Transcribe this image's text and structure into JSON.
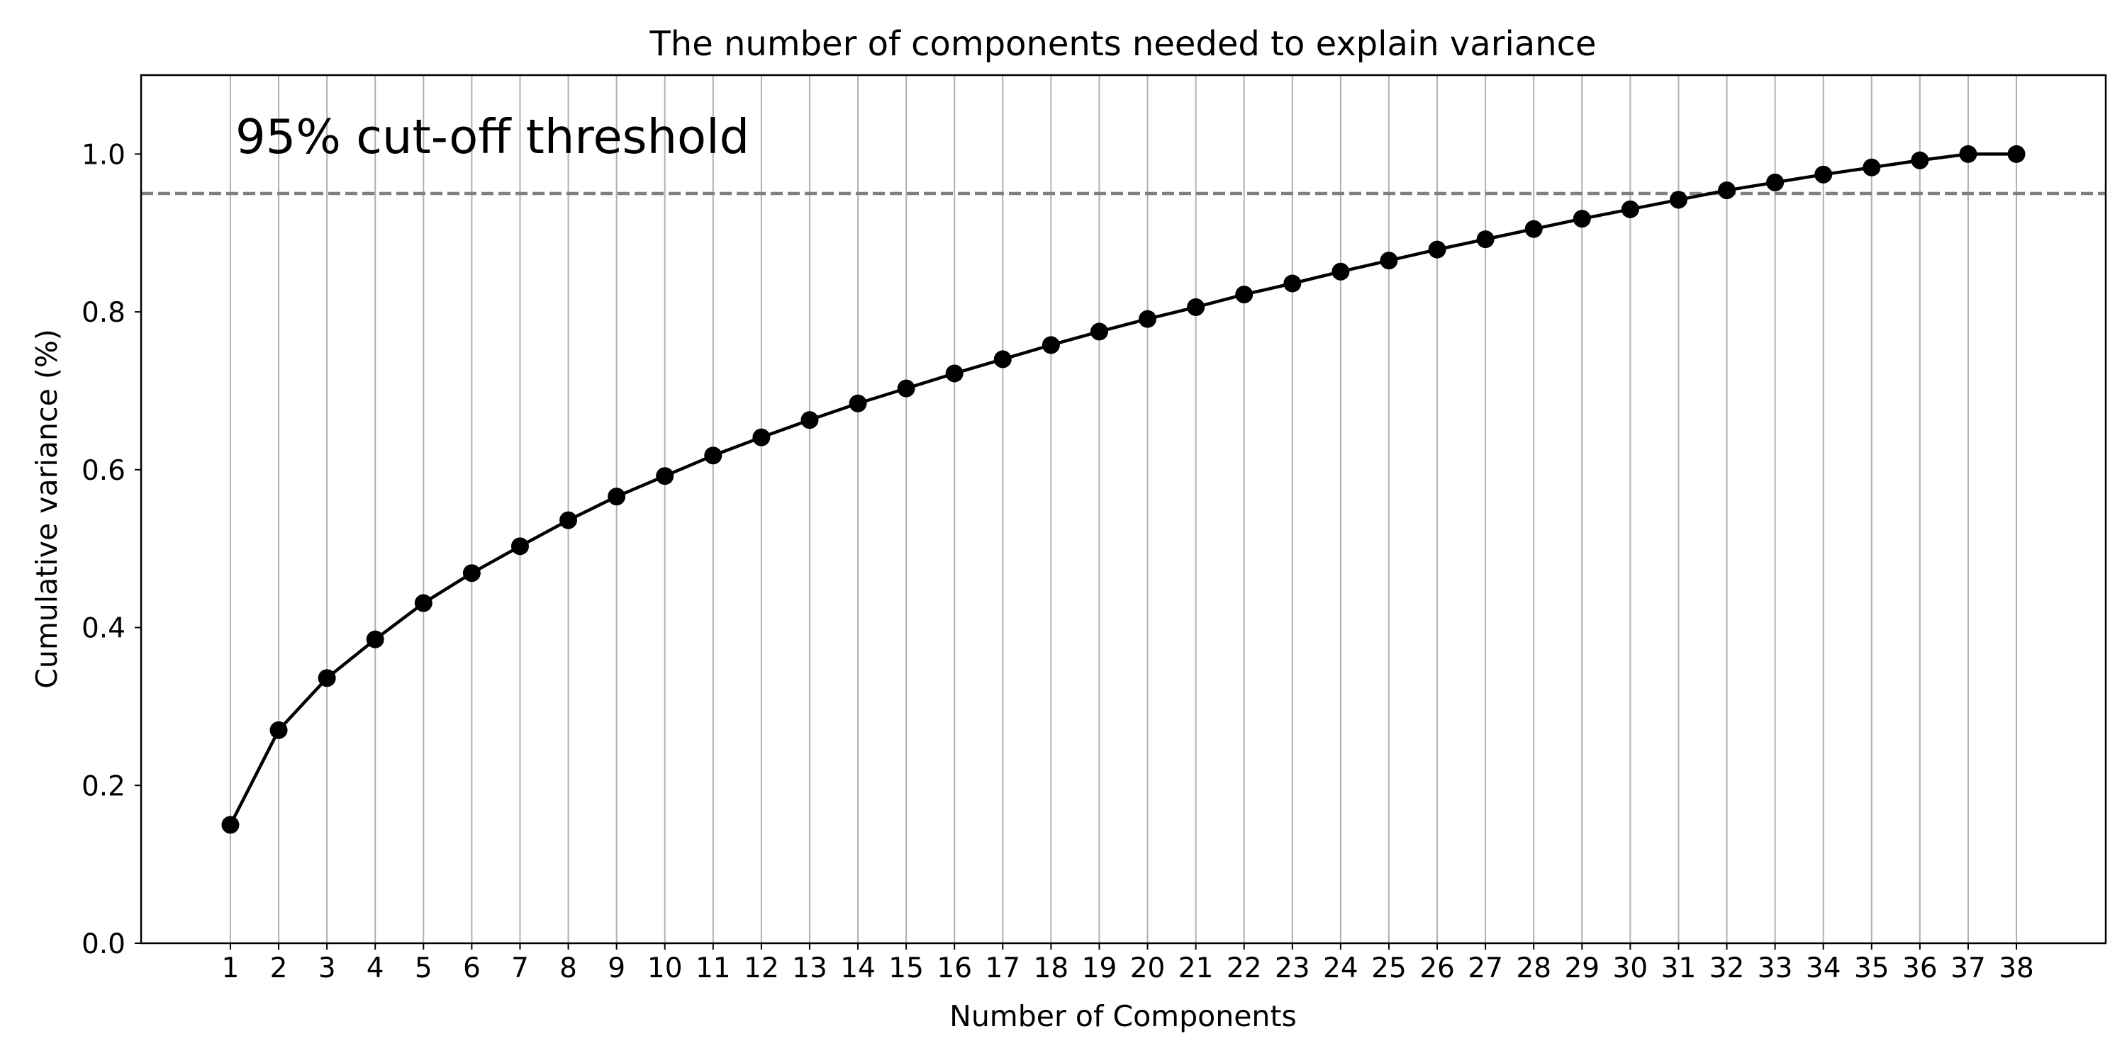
{
  "chart_data": {
    "type": "line",
    "title": "The number of components needed to explain variance",
    "xlabel": "Number of Components",
    "ylabel": "Cumulative variance (%)",
    "x": [
      1,
      2,
      3,
      4,
      5,
      6,
      7,
      8,
      9,
      10,
      11,
      12,
      13,
      14,
      15,
      16,
      17,
      18,
      19,
      20,
      21,
      22,
      23,
      24,
      25,
      26,
      27,
      28,
      29,
      30,
      31,
      32,
      33,
      34,
      35,
      36,
      37,
      38
    ],
    "xlim": [
      -0.85,
      39.85
    ],
    "ylim": [
      0,
      1.1
    ],
    "yticks": [
      0.0,
      0.2,
      0.4,
      0.6,
      0.8,
      1.0
    ],
    "ytick_labels": [
      "0.0",
      "0.2",
      "0.4",
      "0.6",
      "0.8",
      "1.0"
    ],
    "grid": "vertical",
    "series": [
      {
        "values": [
          0.15,
          0.27,
          0.336,
          0.385,
          0.431,
          0.469,
          0.503,
          0.536,
          0.566,
          0.592,
          0.618,
          0.641,
          0.663,
          0.684,
          0.703,
          0.722,
          0.74,
          0.758,
          0.775,
          0.791,
          0.806,
          0.822,
          0.836,
          0.851,
          0.865,
          0.879,
          0.892,
          0.905,
          0.918,
          0.93,
          0.942,
          0.954,
          0.964,
          0.974,
          0.983,
          0.992,
          1.0,
          1.0
        ],
        "color": "#000000",
        "marker": "circle"
      }
    ],
    "threshold": {
      "value": 0.95,
      "color": "#808080",
      "style": "dashed"
    },
    "annotation": "95% cut-off threshold"
  }
}
